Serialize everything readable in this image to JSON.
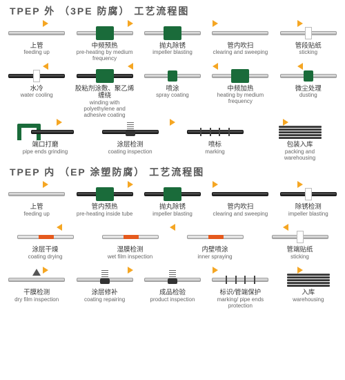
{
  "colors": {
    "arrow": "#f5a623",
    "box_green": "#1a6b3a",
    "accent_orange": "#e55a1e",
    "text_main": "#333333",
    "text_sub": "#666666",
    "title": "#555555",
    "pipe_light_top": "#e8e8e8",
    "pipe_light_bottom": "#b0b0b0",
    "pipe_dark_top": "#555555",
    "pipe_dark_bottom": "#222222",
    "background": "#ffffff"
  },
  "typography": {
    "title_fontsize": 14,
    "label_cn_fontsize": 9.5,
    "label_en_fontsize": 8
  },
  "section_a": {
    "title": "TPEP 外 （3PE 防腐） 工艺流程图",
    "rows": [
      {
        "dir": "r",
        "steps": [
          {
            "cn": "上管",
            "en": "feeding up",
            "icon": "pipe"
          },
          {
            "cn": "中频预热",
            "en": "pre-heating by medium frequency",
            "icon": "greenbox"
          },
          {
            "cn": "抛丸除锈",
            "en": "impeller blasting",
            "icon": "greenbox"
          },
          {
            "cn": "管内吹扫",
            "en": "clearing and sweeping",
            "icon": "pipe"
          },
          {
            "cn": "管段贴纸",
            "en": "sticking",
            "icon": "marker"
          }
        ]
      },
      {
        "dir": "l",
        "steps": [
          {
            "cn": "水冷",
            "en": "water cooling",
            "icon": "marker-dark"
          },
          {
            "cn": "胶粘剂涂敷、聚乙烯缠绕",
            "en": "winding with polyethylene and adhesive coating",
            "icon": "greenbox-dark"
          },
          {
            "cn": "喷涂",
            "en": "spray coating",
            "icon": "greensmall"
          },
          {
            "cn": "中频加热",
            "en": "heating by medium frequency",
            "icon": "greenbox"
          },
          {
            "cn": "微尘处理",
            "en": "dusting",
            "icon": "greensmall"
          }
        ]
      },
      {
        "dir": "r",
        "steps": [
          {
            "cn": "端口打磨",
            "en": "pipe ends grinding",
            "icon": "arch"
          },
          {
            "cn": "涂层检测",
            "en": "coating inspection",
            "icon": "spring-dark"
          },
          {
            "cn": "喷标",
            "en": "marking",
            "icon": "marks-dark"
          },
          {
            "cn": "包装入库",
            "en": "packing and warehousing",
            "icon": "stack"
          }
        ]
      }
    ]
  },
  "section_b": {
    "title": "TPEP 内 （EP 涂塑防腐） 工艺流程图",
    "rows": [
      {
        "dir": "r",
        "steps": [
          {
            "cn": "上管",
            "en": "feeding up",
            "icon": "pipe"
          },
          {
            "cn": "管内预热",
            "en": "pre-heating inside tube",
            "icon": "greenbox-dark"
          },
          {
            "cn": "抛丸除锈",
            "en": "impeller blasting",
            "icon": "greenbox-dark"
          },
          {
            "cn": "管内吹扫",
            "en": "clearing and sweeping",
            "icon": "pipe-dark"
          },
          {
            "cn": "除锈检测",
            "en": "impeller blasting",
            "icon": "marker-dark"
          }
        ]
      },
      {
        "dir": "l",
        "steps": [
          {
            "cn": "涂层干燥",
            "en": "coating drying",
            "icon": "orange"
          },
          {
            "cn": "湿膜检测",
            "en": "wet film inspection",
            "icon": "orange"
          },
          {
            "cn": "内壁喷涂",
            "en": "inner spraying",
            "icon": "orange"
          },
          {
            "cn": "管端贴纸",
            "en": "sticking",
            "icon": "marker"
          }
        ]
      },
      {
        "dir": "r",
        "steps": [
          {
            "cn": "干膜检测",
            "en": "dry film inspection",
            "icon": "tri"
          },
          {
            "cn": "涂层修补",
            "en": "coating repairing",
            "icon": "spring"
          },
          {
            "cn": "成品检验",
            "en": "product inspection",
            "icon": "spring"
          },
          {
            "cn": "标识/管端保护",
            "en": "marking/ pipe ends protection",
            "icon": "marks"
          },
          {
            "cn": "入库",
            "en": "warehousing",
            "icon": "stack"
          }
        ]
      }
    ]
  }
}
